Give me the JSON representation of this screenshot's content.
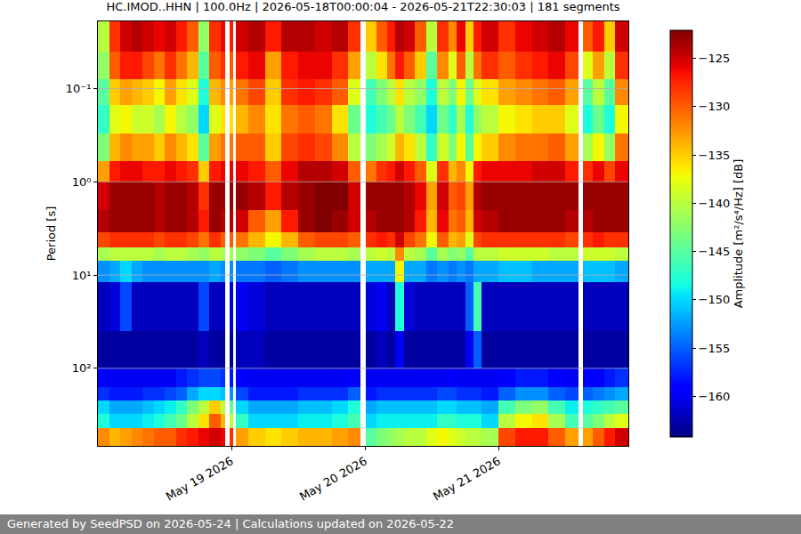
{
  "chart_data": {
    "type": "heatmap",
    "title": "HC.IMOD..HHN | 100.0Hz | 2026-05-18T00:00:04 - 2026-05-21T22:30:03 | 181 segments",
    "footer": "Generated by SeedPSD on 2026-05-24 | Calculations updated on 2026-05-22",
    "y_label": "Period [s]",
    "colorbar_label": "Amplitude [m²/s⁴/Hz] [dB]",
    "color": "jet",
    "log": "y",
    "grid": true,
    "x_edges": [
      "2026-05-18 00:00",
      "2026-05-18 02:00",
      "2026-05-18 04:00",
      "2026-05-18 06:00",
      "2026-05-18 08:00",
      "2026-05-18 10:00",
      "2026-05-18 12:00",
      "2026-05-18 14:00",
      "2026-05-18 16:00",
      "2026-05-18 18:00",
      "2026-05-18 20:00",
      "2026-05-18 22:00",
      "2026-05-18 22:54",
      "2026-05-18 23:42",
      "2026-05-19 00:18",
      "2026-05-19 00:48",
      "2026-05-19 03:00",
      "2026-05-19 06:00",
      "2026-05-19 09:00",
      "2026-05-19 12:00",
      "2026-05-19 15:00",
      "2026-05-19 18:00",
      "2026-05-19 21:00",
      "2026-05-19 23:12",
      "2026-05-20 00:12",
      "2026-05-20 02:00",
      "2026-05-20 04:00",
      "2026-05-20 05:30",
      "2026-05-20 07:00",
      "2026-05-20 09:00",
      "2026-05-20 11:00",
      "2026-05-20 13:00",
      "2026-05-20 15:00",
      "2026-05-20 16:30",
      "2026-05-20 18:00",
      "2026-05-20 19:30",
      "2026-05-20 21:00",
      "2026-05-21 00:00",
      "2026-05-21 03:00",
      "2026-05-21 06:00",
      "2026-05-21 09:00",
      "2026-05-21 12:00",
      "2026-05-21 14:24",
      "2026-05-21 15:12",
      "2026-05-21 17:00",
      "2026-05-21 19:00",
      "2026-05-21 21:00",
      "2026-05-21 23:18"
    ],
    "period_edges": [
      0.019,
      0.04,
      0.08,
      0.15,
      0.3,
      0.6,
      1,
      2,
      3.5,
      5,
      7,
      12,
      40,
      100,
      160,
      220,
      310,
      440,
      680
    ],
    "cells": [
      [
        -140,
        -128,
        -125,
        -124,
        -125,
        -126,
        -125,
        -127,
        -130,
        -142,
        -128,
        -126,
        null,
        -127,
        null,
        -125,
        -124,
        -127,
        -124,
        -124,
        -125,
        -124,
        -128,
        null,
        -135,
        -130,
        -127,
        -124,
        -125,
        -130,
        -140,
        -128,
        -132,
        -126,
        -135,
        -127,
        -125,
        -128,
        -126,
        -125,
        -124,
        -126,
        null,
        -130,
        -127,
        -135,
        -125
      ],
      [
        -142,
        -130,
        -127,
        -127,
        -129,
        -131,
        -128,
        -131,
        -134,
        -145,
        -130,
        -128,
        null,
        -130,
        null,
        -127,
        -126,
        -133,
        -127,
        -126,
        -126,
        -128,
        -133,
        null,
        -140,
        -136,
        -131,
        -127,
        -130,
        -135,
        -145,
        -132,
        -138,
        -130,
        -140,
        -131,
        -128,
        -130,
        -128,
        -127,
        -126,
        -129,
        null,
        -138,
        -133,
        -140,
        -128
      ],
      [
        -145,
        -135,
        -133,
        -134,
        -135,
        -137,
        -133,
        -136,
        -138,
        -148,
        -134,
        -132,
        null,
        -133,
        null,
        -131,
        -129,
        -135,
        -128,
        -127,
        -128,
        -130,
        -138,
        null,
        -146,
        -143,
        -140,
        -136,
        -140,
        -142,
        -148,
        -140,
        -143,
        -137,
        -144,
        -138,
        -136,
        -133,
        -132,
        -131,
        -130,
        -133,
        null,
        -145,
        -140,
        -145,
        -132
      ],
      [
        -147,
        -138,
        -137,
        -139,
        -139,
        -141,
        -137,
        -140,
        -142,
        -150,
        -138,
        -136,
        null,
        -136,
        null,
        -134,
        -132,
        -136,
        -131,
        -130,
        -131,
        -136,
        -144,
        null,
        -148,
        -146,
        -144,
        -140,
        -143,
        -146,
        -150,
        -144,
        -147,
        -141,
        -148,
        -142,
        -140,
        -137,
        -136,
        -135,
        -135,
        -138,
        null,
        -148,
        -144,
        -148,
        -137
      ],
      [
        -143,
        -134,
        -132,
        -133,
        -133,
        -135,
        -132,
        -134,
        -136,
        -145,
        -133,
        -131,
        null,
        -131,
        null,
        -130,
        -130,
        -135,
        -129,
        -128,
        -129,
        -132,
        -140,
        null,
        -143,
        -141,
        -139,
        -134,
        -136,
        -140,
        -147,
        -139,
        -143,
        -137,
        -145,
        -137,
        -135,
        -132,
        -131,
        -131,
        -130,
        -133,
        null,
        -141,
        -137,
        -142,
        -131
      ],
      [
        -133,
        -127,
        -126,
        -126,
        -127,
        -127,
        -126,
        -127,
        -128,
        -135,
        -127,
        -126,
        null,
        -126,
        null,
        -126,
        -127,
        -130,
        -126,
        -124,
        -124,
        -125,
        -130,
        null,
        -131,
        -128,
        -127,
        -125,
        -127,
        -130,
        -138,
        -128,
        -134,
        -132,
        -137,
        -127,
        -126,
        -126,
        -126,
        -125,
        -125,
        -127,
        null,
        -128,
        -126,
        -129,
        -126
      ],
      [
        -125,
        -123,
        -123,
        -123,
        -123,
        -124,
        -123,
        -123,
        -124,
        -128,
        -123,
        -123,
        null,
        -123,
        null,
        -123,
        -124,
        -127,
        -124,
        -123,
        -122,
        -122,
        -125,
        null,
        -123,
        -123,
        -123,
        -123,
        -124,
        -126,
        -133,
        -125,
        -130,
        -129,
        -133,
        -124,
        -123,
        -123,
        -123,
        -123,
        -123,
        -123,
        null,
        -123,
        -123,
        -123,
        -123
      ],
      [
        -124,
        -123,
        -123,
        -123,
        -123,
        -124,
        -123,
        -123,
        -124,
        -127,
        -123,
        -124,
        null,
        -124,
        null,
        -125,
        -130,
        -133,
        -127,
        -123,
        -122,
        -123,
        -125,
        null,
        -124,
        -123,
        -123,
        -123,
        -124,
        -127,
        -134,
        -126,
        -131,
        -130,
        -134,
        -125,
        -124,
        -123,
        -123,
        -123,
        -123,
        -124,
        null,
        -124,
        -123,
        -123,
        -123
      ],
      [
        -129,
        -128,
        -128,
        -128,
        -128,
        -129,
        -128,
        -128,
        -129,
        -131,
        -128,
        -130,
        null,
        -130,
        null,
        -131,
        -134,
        -137,
        -134,
        -130,
        -129,
        -129,
        -130,
        null,
        -128,
        -127,
        -128,
        -125,
        -129,
        -131,
        -137,
        -130,
        -134,
        -133,
        -138,
        -129,
        -128,
        -128,
        -128,
        -128,
        -128,
        -129,
        null,
        -128,
        -127,
        -128,
        -128
      ],
      [
        -141,
        -140,
        -140,
        -140,
        -140,
        -141,
        -140,
        -140,
        -141,
        -142,
        -140,
        -141,
        null,
        -141,
        null,
        -142,
        -143,
        -145,
        -143,
        -141,
        -140,
        -140,
        -141,
        null,
        -140,
        -139,
        -140,
        -132,
        -140,
        -141,
        -145,
        -141,
        -143,
        -142,
        -145,
        -140,
        -140,
        -139,
        -139,
        -139,
        -140,
        -140,
        null,
        -139,
        -139,
        -139,
        -140
      ],
      [
        -153,
        -152,
        -150,
        -152,
        -153,
        -153,
        -153,
        -153,
        -153,
        -153,
        -152,
        -153,
        null,
        -153,
        null,
        -154,
        -154,
        -155,
        -154,
        -153,
        -153,
        -153,
        -153,
        null,
        -152,
        -152,
        -152,
        -137,
        -152,
        -152,
        -154,
        -153,
        -154,
        -153,
        -154,
        -152,
        -152,
        -151,
        -151,
        -152,
        -152,
        -152,
        null,
        -151,
        -151,
        -151,
        -152
      ],
      [
        -162,
        -161,
        -156,
        -162,
        -162,
        -162,
        -162,
        -162,
        -162,
        -156,
        -162,
        -162,
        null,
        -161,
        null,
        -160,
        -161,
        -162,
        -162,
        -162,
        -162,
        -162,
        -162,
        null,
        -161,
        -160,
        -162,
        -148,
        -161,
        -162,
        -162,
        -162,
        -162,
        -162,
        -155,
        -146,
        -162,
        -162,
        -162,
        -162,
        -162,
        -162,
        null,
        -162,
        -162,
        -162,
        -162
      ],
      [
        -163,
        -163,
        -163,
        -163,
        -163,
        -163,
        -163,
        -163,
        -163,
        -162,
        -163,
        -163,
        null,
        -163,
        null,
        -162,
        -162,
        -163,
        -163,
        -163,
        -163,
        -163,
        -163,
        null,
        -163,
        -162,
        -163,
        -160,
        -163,
        -163,
        -163,
        -163,
        -163,
        -163,
        -160,
        -155,
        -163,
        -163,
        -163,
        -163,
        -163,
        -163,
        null,
        -163,
        -163,
        -163,
        -163
      ],
      [
        -159,
        -160,
        -160,
        -160,
        -160,
        -160,
        -160,
        -158,
        -157,
        -156,
        -156,
        -157,
        null,
        -158,
        null,
        -159,
        -160,
        -160,
        -160,
        -160,
        -160,
        -160,
        -159,
        null,
        -160,
        -160,
        -160,
        -160,
        -160,
        -160,
        -160,
        -160,
        -159,
        -160,
        -160,
        -160,
        -160,
        -159,
        -158,
        -158,
        -159,
        -160,
        null,
        -159,
        -159,
        -158,
        -157
      ],
      [
        -157,
        -158,
        -158,
        -158,
        -157,
        -157,
        -156,
        -155,
        -152,
        -150,
        -150,
        -151,
        null,
        -153,
        null,
        -156,
        -158,
        -158,
        -158,
        -157,
        -157,
        -157,
        -155,
        null,
        -158,
        -157,
        -157,
        -157,
        -157,
        -157,
        -157,
        -156,
        -156,
        -157,
        -157,
        -157,
        -158,
        -155,
        -153,
        -153,
        -155,
        -156,
        null,
        -155,
        -154,
        -153,
        -152
      ],
      [
        -150,
        -152,
        -152,
        -152,
        -151,
        -150,
        -149,
        -147,
        -143,
        -140,
        -135,
        -140,
        null,
        -145,
        null,
        -150,
        -152,
        -152,
        -152,
        -151,
        -151,
        -150,
        -148,
        null,
        -152,
        -151,
        -151,
        -151,
        -151,
        -151,
        -151,
        -150,
        -150,
        -151,
        -151,
        -151,
        -152,
        -146,
        -143,
        -142,
        -146,
        -149,
        null,
        -148,
        -147,
        -146,
        -145
      ],
      [
        -148,
        -150,
        -150,
        -150,
        -149,
        -148,
        -146,
        -144,
        -140,
        -136,
        -130,
        -134,
        null,
        -140,
        null,
        -147,
        -150,
        -150,
        -150,
        -149,
        -149,
        -148,
        -146,
        null,
        -150,
        -149,
        -149,
        -149,
        -149,
        -149,
        -149,
        -147,
        -147,
        -148,
        -148,
        -148,
        -150,
        -140,
        -137,
        -136,
        -141,
        -146,
        null,
        -145,
        -143,
        -140,
        -138
      ],
      [
        -132,
        -134,
        -133,
        -132,
        -131,
        -130,
        -130,
        -128,
        -127,
        -126,
        -125,
        -126,
        null,
        -128,
        null,
        -133,
        -135,
        -136,
        -135,
        -134,
        -134,
        -133,
        -132,
        null,
        -145,
        -143,
        -142,
        -141,
        -140,
        -140,
        -138,
        -137,
        -138,
        -139,
        -140,
        -140,
        -141,
        -129,
        -127,
        -127,
        -130,
        -133,
        null,
        -133,
        -130,
        -127,
        -125
      ]
    ],
    "xlim": [
      "2026-05-18 00:00",
      "2026-05-21 23:20"
    ],
    "xticks": [
      {
        "value": "2026-05-19 00:00",
        "label": "May 19 2026"
      },
      {
        "value": "2026-05-20 00:00",
        "label": "May 20 2026"
      },
      {
        "value": "2026-05-21 00:00",
        "label": "May 21 2026"
      }
    ],
    "ylim": [
      680,
      0.019
    ],
    "yticks": [
      {
        "value": 0.1,
        "label": "10⁻¹"
      },
      {
        "value": 1,
        "label": "10⁰"
      },
      {
        "value": 10,
        "label": "10¹"
      },
      {
        "value": 100,
        "label": "10²"
      }
    ],
    "colorbar_range": [
      -164.2,
      -122.1
    ],
    "colorbar_ticks": [
      {
        "value": -125,
        "label": "−125"
      },
      {
        "value": -130,
        "label": "−130"
      },
      {
        "value": -135,
        "label": "−135"
      },
      {
        "value": -140,
        "label": "−140"
      },
      {
        "value": -145,
        "label": "−145"
      },
      {
        "value": -150,
        "label": "−150"
      },
      {
        "value": -155,
        "label": "−155"
      },
      {
        "value": -160,
        "label": "−160"
      }
    ]
  }
}
